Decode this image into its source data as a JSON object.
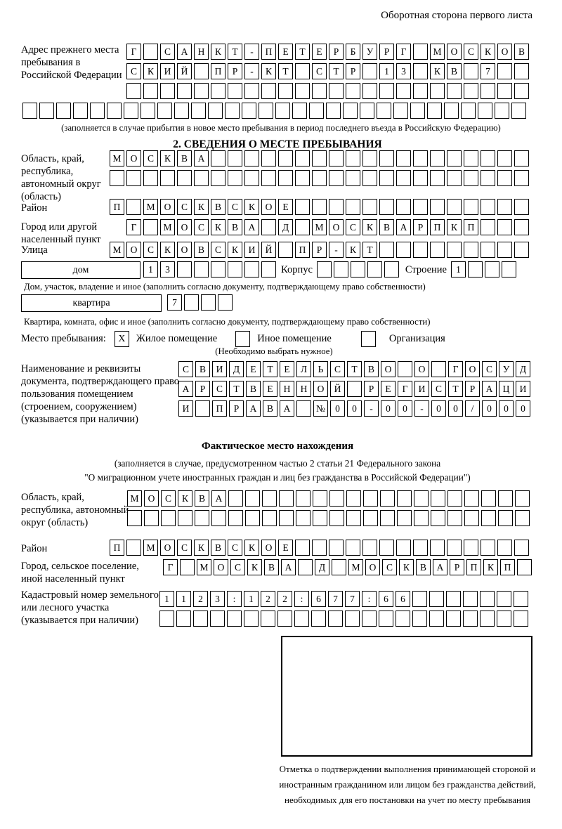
{
  "header_note": "Оборотная сторона первого листа",
  "colors": {
    "ink": "#000000",
    "paper": "#ffffff"
  },
  "prev_address": {
    "label": "Адрес прежнего места пребывания в Российской Федерации",
    "rows": [
      {
        "text": "Г САНКТ-ПЕТЕРБУРГ МОСКОВ",
        "len": 24
      },
      {
        "text": "СКИЙ ПР-КТ СТР 13 КВ 7",
        "len": 24
      },
      {
        "text": "",
        "len": 24
      }
    ],
    "overflow_row": {
      "text": "",
      "len": 30
    },
    "caption": "(заполняется в случае прибытия в новое место пребывания в период последнего въезда в Российскую Федерацию)"
  },
  "section2": {
    "title": "2. СВЕДЕНИЯ О МЕСТЕ ПРЕБЫВАНИЯ",
    "oblast": {
      "label": "Область, край, республика, автономный округ (область)",
      "rows": [
        {
          "text": "МОСКВА",
          "len": 25
        },
        {
          "text": "",
          "len": 25
        }
      ]
    },
    "rayon": {
      "label": "Район",
      "row": {
        "text": "П МОСКВСКОЕ",
        "len": 25
      }
    },
    "gorod": {
      "label": "Город или другой населенный пункт",
      "row": {
        "text": "Г МОСКВА Д МОСКВАРПКП",
        "len": 24
      }
    },
    "ulitsa": {
      "label": "Улица",
      "row": {
        "text": "МОСКОВСКИЙ ПР-КТ",
        "len": 25
      }
    },
    "dom": {
      "box_label": "дом",
      "cells": {
        "text": "13",
        "len": 8
      },
      "korpus_label": "Корпус",
      "korpus_cells": {
        "text": "",
        "len": 5
      },
      "stroenie_label": "Строение",
      "stroenie_cells": {
        "text": "1",
        "len": 4
      }
    },
    "dom_caption": "Дом, участок, владение и иное (заполнить согласно документу, подтверждающему право собственности)",
    "kvartira": {
      "box_label": "квартира",
      "cells": {
        "text": "7",
        "len": 4
      }
    },
    "kvartira_caption": "Квартира, комната, офис и иное (заполнить согласно документу, подтверждающему право собственности)",
    "mesto": {
      "label": "Место пребывания:",
      "options": [
        {
          "label": "Жилое помещение",
          "box": {
            "text": "X",
            "len": 1
          }
        },
        {
          "label": "Иное помещение",
          "box": {
            "text": "",
            "len": 1
          }
        },
        {
          "label": "Организация",
          "box": {
            "text": "",
            "len": 1
          }
        }
      ],
      "note": "(Необходимо выбрать нужное)"
    },
    "document": {
      "label": "Наименование и реквизиты документа, подтверждающего право пользования помещением (строением, сооружением) (указывается при наличии)",
      "rows": [
        {
          "text": "СВИДЕТЕЛЬСТВО О ГОСУД",
          "len": 21
        },
        {
          "text": "АРСТВЕННОЙ РЕГИСТРАЦИ",
          "len": 21
        },
        {
          "text": "И ПРАВА №00-00-00/000",
          "len": 21
        }
      ]
    }
  },
  "factual": {
    "title": "Фактическое место нахождения",
    "subtitle1": "(заполняется в случае, предусмотренном частью 2 статьи 21 Федерального закона",
    "subtitle2": "\"О миграционном учете иностранных граждан и лиц без гражданства в Российской Федерации\")",
    "oblast": {
      "label": "Область, край, республика, автономный округ (область)",
      "rows": [
        {
          "text": "МОСКВА",
          "len": 24
        },
        {
          "text": "",
          "len": 24
        }
      ]
    },
    "rayon": {
      "label": "Район",
      "row": {
        "text": "П МОСКВСКОЕ",
        "len": 25
      }
    },
    "gorod": {
      "label": "Город, сельское поселение, иной населенный пункт",
      "row": {
        "text": "Г МОСКВА Д МОСКВАРПКП",
        "len": 22
      }
    },
    "kadastr": {
      "label": "Кадастровый номер земельного или лесного участка (указывается при наличии)",
      "rows": [
        {
          "text": "1123:122:677:66",
          "len": 22
        },
        {
          "text": "",
          "len": 22
        }
      ]
    },
    "stamp_caption": "Отметка о подтверждении выполнения принимающей стороной и иностранным гражданином или лицом без гражданства действий, необходимых для его постановки на учет по месту пребывания"
  }
}
